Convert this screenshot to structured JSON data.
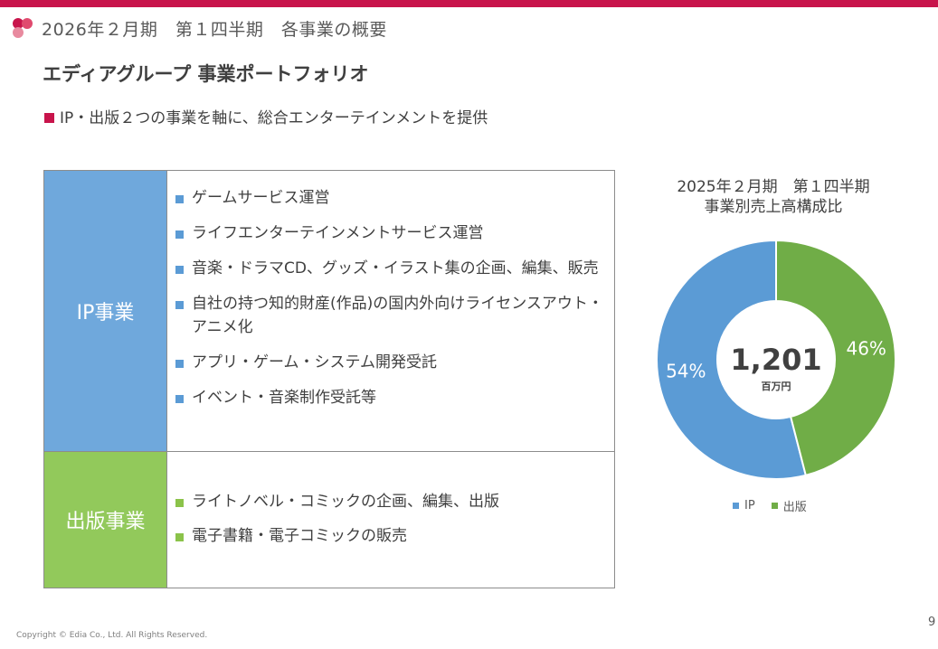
{
  "header": {
    "title": "2026年２月期　第１四半期　各事業の概要"
  },
  "section_title": "エディアグループ 事業ポートフォリオ",
  "lead": "IP・出版２つの事業を軸に、総合エンターテインメントを提供",
  "table": {
    "ip": {
      "label": "IP事業",
      "items": [
        "ゲームサービス運営",
        "ライフエンターテインメントサービス運営",
        "音楽・ドラマCD、グッズ・イラスト集の企画、編集、販売",
        "自社の持つ知的財産(作品)の国内外向けライセンスアウト・アニメ化",
        "アプリ・ゲーム・システム開発受託",
        "イベント・音楽制作受託等"
      ]
    },
    "publishing": {
      "label": "出版事業",
      "items": [
        "ライトノベル・コミックの企画、編集、出版",
        "電子書籍・電子コミックの販売"
      ]
    }
  },
  "chart_data": {
    "type": "pie",
    "title": "2025年２月期　第１四半期\n事業別売上高構成比",
    "center_value": "1,201",
    "center_unit": "百万円",
    "series": [
      {
        "name": "IP",
        "value": 54,
        "label": "54%",
        "color": "#5b9bd5"
      },
      {
        "name": "出版",
        "value": 46,
        "label": "46%",
        "color": "#70ad47"
      }
    ],
    "legend_position": "bottom"
  },
  "footer": {
    "copyright": "Copyright © Edia Co., Ltd. All Rights Reserved.",
    "page_number": "9"
  },
  "colors": {
    "brand": "#c8144b",
    "ip": "#6fa8dc",
    "publishing": "#92c95b"
  }
}
